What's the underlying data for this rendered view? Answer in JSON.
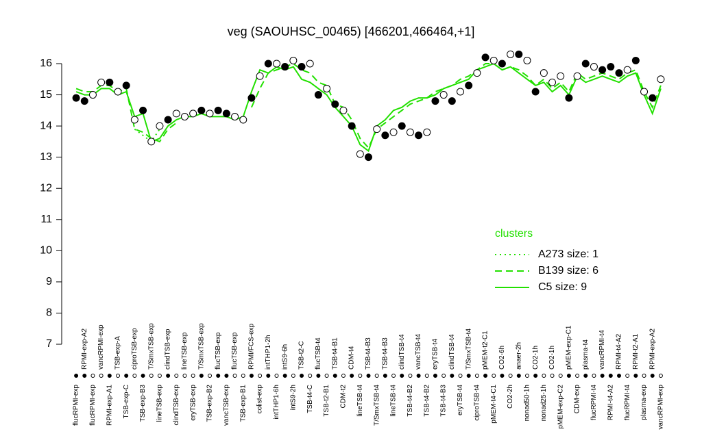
{
  "chart_data": {
    "type": "line",
    "title": "veg (SAOUHSC_00465) [466201,466464,+1]",
    "legend_title": "clusters",
    "legend_position": "right",
    "ylim": [
      7,
      16.2
    ],
    "yticks": [
      7,
      8,
      9,
      10,
      11,
      12,
      13,
      14,
      15,
      16
    ],
    "categories": [
      "flucRPMI-exp",
      "RPMI-exp-A2",
      "flucRPMI-exp",
      "vancRPMI-exp",
      "RPMI-exp-A1",
      "TSB-exp-A",
      "TSB-exp-C",
      "ciproTSB-exp",
      "TSB-exp-B3",
      "T/SmxTSB-exp",
      "lineTSB-exp",
      "clindTSB-exp",
      "clindTSB-exp",
      "lineTSB-exp",
      "eryTSB-exp",
      "T/SmxTSB-exp",
      "TSB-exp-B2",
      "flucTSB-exp",
      "vancTSB-exp",
      "flucTSB-exp",
      "TSB-exp-B1",
      "RPMI/FCS-exp",
      "colist-exp",
      "intTHP1-2h",
      "intTHP1-6h",
      "intS9-6h",
      "intS9-2h",
      "TSB-t2-C",
      "TSB-t4-C",
      "flucTSB-t4",
      "TSB-t2-B1",
      "TSB-t4-B1",
      "CDM-t2",
      "CDM-t4",
      "lineTSB-t4",
      "TSB-t4-B3",
      "T/SmxTSB-t4",
      "TSB-t4-B3",
      "lineTSB-t4",
      "clindTSB-t4",
      "TSB-t4-B2",
      "vancTSB-t4",
      "TSB-t4-B2",
      "eryTSB-t4",
      "TSB-t4-B3",
      "clindTSB-t4",
      "eryTSB-t4",
      "T/SmxTSB-t4",
      "ciproTSB-t4",
      "pMEM-t2-C1",
      "pMEM-t4-C1",
      "CO2-6h",
      "CO2-2h",
      "anaer-2h",
      "nonad50-1h",
      "CO2-1h",
      "nonad25-1h",
      "CO2-1h",
      "pMEM-exp-C2",
      "pMEM-exp-C1",
      "CDM-exp",
      "plasma-t4",
      "flucRPMI-t4",
      "vancRPMI-t4",
      "RPMI-t4-A2",
      "RPMI-t4-A2",
      "flucRPMI-t4",
      "RPMI-t2-A1",
      "plasma-exp",
      "RPMI-exp-A2",
      "vancRPMI-exp"
    ],
    "samples": {
      "values": [
        14.9,
        14.8,
        15.0,
        15.4,
        15.4,
        15.1,
        15.3,
        14.2,
        14.5,
        13.5,
        14.0,
        14.2,
        14.4,
        14.3,
        14.4,
        14.5,
        14.4,
        14.5,
        14.4,
        14.3,
        14.2,
        14.9,
        15.6,
        16.0,
        16.0,
        15.9,
        16.1,
        15.9,
        16.0,
        15.0,
        15.2,
        14.7,
        14.5,
        14.0,
        13.1,
        13.0,
        13.9,
        13.7,
        13.8,
        14.0,
        13.8,
        13.7,
        13.8,
        14.8,
        15.0,
        14.8,
        15.1,
        15.3,
        15.7,
        16.2,
        16.1,
        16.0,
        16.3,
        16.3,
        16.1,
        15.1,
        15.7,
        15.4,
        15.6,
        14.9,
        15.6,
        16.0,
        15.9,
        15.8,
        15.9,
        15.7,
        15.8,
        16.1,
        15.1,
        14.9,
        15.5
      ],
      "filled": [
        true,
        true,
        false,
        false,
        true,
        false,
        true,
        false,
        true,
        false,
        false,
        true,
        false,
        false,
        false,
        true,
        false,
        true,
        true,
        false,
        false,
        true,
        false,
        true,
        false,
        true,
        false,
        true,
        false,
        true,
        false,
        true,
        false,
        true,
        false,
        true,
        false,
        true,
        false,
        true,
        false,
        true,
        false,
        true,
        false,
        true,
        false,
        true,
        false,
        true,
        false,
        true,
        false,
        true,
        false,
        true,
        false,
        false,
        false,
        true,
        false,
        true,
        false,
        true,
        true,
        true,
        false,
        true,
        false,
        true,
        false
      ]
    },
    "series": [
      {
        "name": "A273 size: 1",
        "color": "#22e000",
        "dash": "dotted",
        "values": [
          null,
          null,
          null,
          null,
          null,
          null,
          null,
          13.9,
          13.7,
          13.5,
          13.9,
          null,
          null,
          null,
          null,
          null,
          null,
          null,
          null,
          null,
          null,
          null,
          null,
          null,
          null,
          null,
          null,
          null,
          null,
          null,
          null,
          null,
          null,
          null,
          null,
          null,
          null,
          null,
          null,
          null,
          null,
          null,
          null,
          null,
          null,
          null,
          null,
          null,
          null,
          null,
          null,
          null,
          null,
          null,
          null,
          null,
          null,
          null,
          null,
          null,
          null,
          null,
          null,
          null,
          null,
          null,
          null,
          null,
          null,
          null,
          null
        ]
      },
      {
        "name": "B139 size: 6",
        "color": "#22e000",
        "dash": "dashed",
        "values": [
          15.2,
          15.1,
          15.1,
          15.3,
          15.3,
          15.1,
          15.2,
          13.9,
          13.8,
          13.6,
          13.5,
          13.9,
          14.1,
          null,
          null,
          null,
          null,
          null,
          null,
          null,
          null,
          14.6,
          15.2,
          15.7,
          15.8,
          15.9,
          16.0,
          15.8,
          15.7,
          15.4,
          15.3,
          14.7,
          14.6,
          14.2,
          13.6,
          13.3,
          13.9,
          14.1,
          14.3,
          14.5,
          14.7,
          14.8,
          14.9,
          15.1,
          15.2,
          15.3,
          15.5,
          15.6,
          15.8,
          16.0,
          16.0,
          15.8,
          15.9,
          15.8,
          15.6,
          15.3,
          15.5,
          15.2,
          15.4,
          15.1,
          15.7,
          15.5,
          15.6,
          15.7,
          15.6,
          15.5,
          15.7,
          15.8,
          15.1,
          14.6,
          15.3
        ]
      },
      {
        "name": "C5 size: 9",
        "color": "#22e000",
        "dash": "solid",
        "values": [
          15.1,
          15.0,
          15.0,
          15.2,
          15.2,
          15.0,
          15.1,
          14.3,
          14.4,
          13.5,
          13.6,
          14.0,
          14.2,
          14.3,
          14.3,
          14.4,
          14.3,
          14.3,
          14.3,
          14.2,
          14.3,
          15.1,
          15.8,
          15.7,
          15.9,
          15.8,
          15.9,
          15.5,
          15.4,
          15.2,
          15.0,
          14.6,
          14.3,
          14.0,
          13.4,
          13.2,
          14.0,
          14.2,
          14.5,
          14.6,
          14.8,
          14.9,
          14.9,
          15.0,
          15.2,
          15.3,
          15.4,
          15.5,
          15.8,
          15.9,
          16.0,
          15.8,
          15.9,
          15.7,
          15.5,
          15.3,
          15.4,
          15.1,
          15.3,
          15.0,
          15.6,
          15.4,
          15.5,
          15.6,
          15.5,
          15.4,
          15.6,
          15.7,
          15.0,
          14.4,
          15.2
        ]
      }
    ]
  }
}
